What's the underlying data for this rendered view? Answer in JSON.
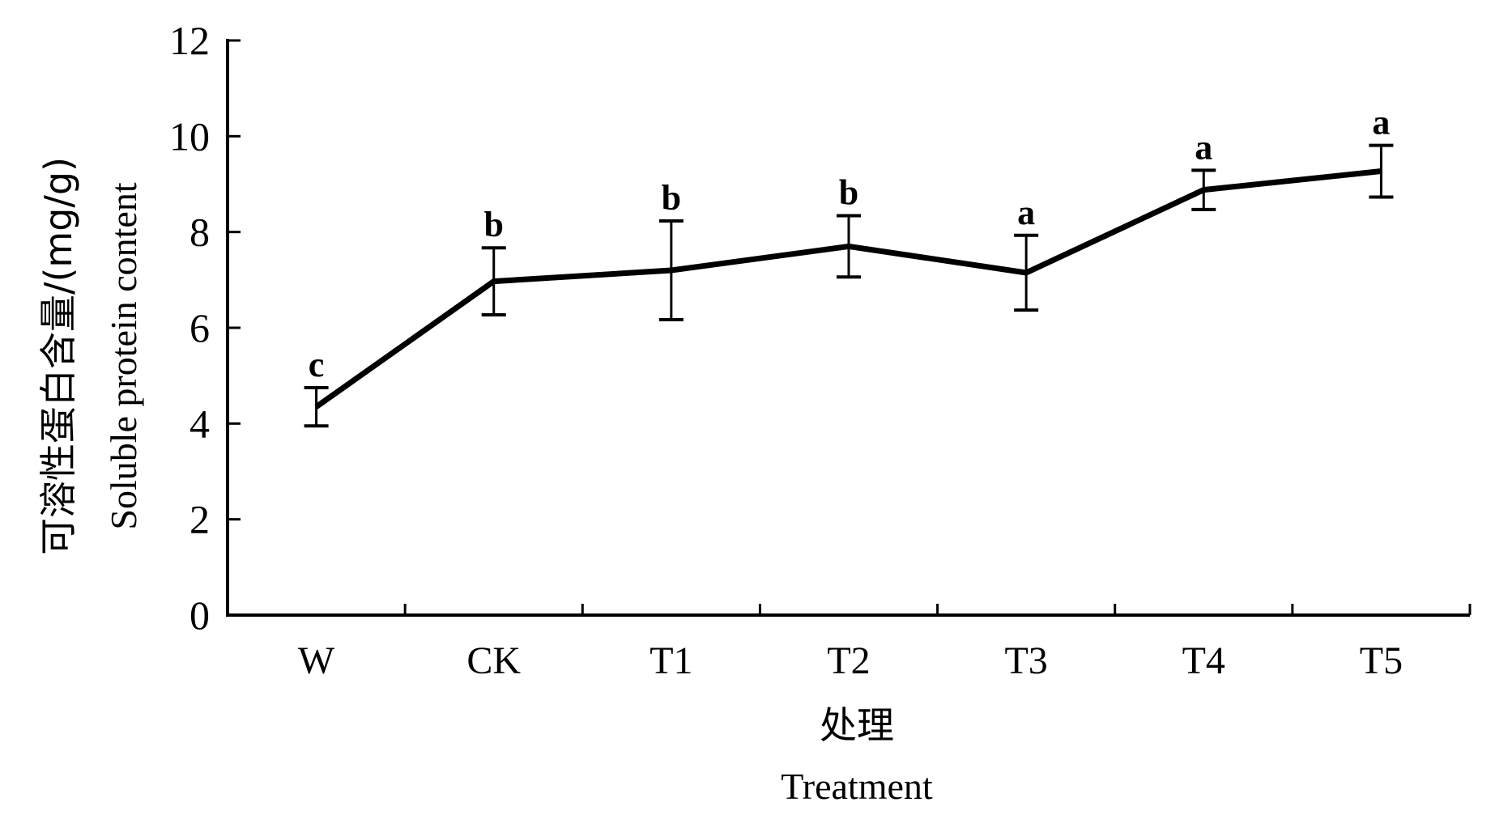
{
  "chart_data": {
    "type": "line",
    "title": "",
    "categories": [
      "W",
      "CK",
      "T1",
      "T2",
      "T3",
      "T4",
      "T5"
    ],
    "series": [
      {
        "name": "Soluble protein content",
        "values": [
          4.35,
          6.97,
          7.2,
          7.7,
          7.15,
          8.88,
          9.27
        ],
        "errors": [
          0.4,
          0.7,
          1.03,
          0.64,
          0.78,
          0.41,
          0.54
        ],
        "significance": [
          "c",
          "b",
          "b",
          "b",
          "a",
          "a",
          "a"
        ],
        "color": "#000000"
      }
    ],
    "xlabel_cn": "处理",
    "xlabel": "Treatment",
    "ylabel_cn": "可溶性蛋白含量/(mg/g)",
    "ylabel": "Soluble protein content",
    "ylim": [
      0,
      12
    ],
    "yticks": [
      0,
      2,
      4,
      6,
      8,
      10,
      12
    ],
    "grid": false,
    "legend": "none"
  }
}
